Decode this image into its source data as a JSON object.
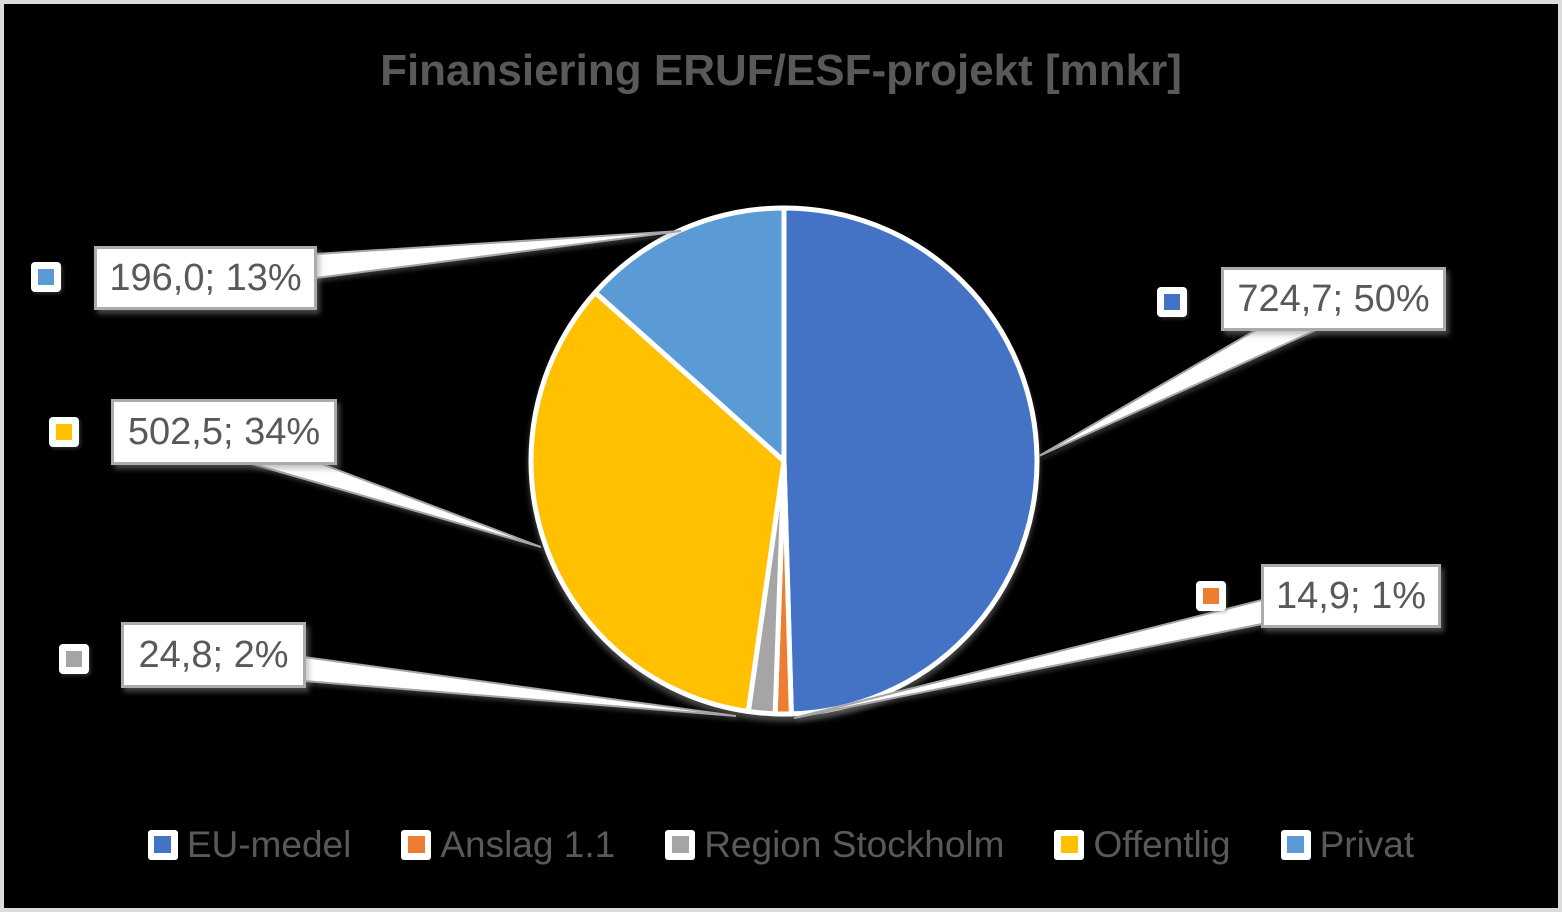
{
  "title": "Finansiering ERUF/ESF-projekt [mnkr]",
  "chart_data": {
    "type": "pie",
    "title": "Finansiering ERUF/ESF-projekt [mnkr]",
    "value_unit": "mnkr",
    "categories": [
      "EU-medel",
      "Anslag 1.1",
      "Region Stockholm",
      "Offentlig",
      "Privat"
    ],
    "values": [
      724.7,
      14.9,
      24.8,
      502.5,
      196.0
    ],
    "percents": [
      50,
      1,
      2,
      34,
      13
    ],
    "data_labels": [
      "724,7; 50%",
      "14,9; 1%",
      "24,8; 2%",
      "502,5; 34%",
      "196,0; 13%"
    ],
    "colors": [
      "#4472C4",
      "#ED7D31",
      "#A5A5A5",
      "#FFC000",
      "#5B9BD5"
    ],
    "start_angle_deg": 0,
    "direction": "clockwise",
    "label_style": "callout",
    "legend_position": "bottom"
  },
  "legend": {
    "items": [
      {
        "label": "EU-medel"
      },
      {
        "label": "Anslag 1.1"
      },
      {
        "label": "Region Stockholm"
      },
      {
        "label": "Offentlig"
      },
      {
        "label": "Privat"
      }
    ]
  },
  "style": {
    "background": "#000000",
    "frame_border": "#DCDCDC",
    "text_color": "#595959",
    "callout_fill": "#FFFFFF",
    "callout_border": "#ABABAB",
    "leader_line": "#A6A6A6",
    "slice_outline": "#FFFFFF"
  }
}
